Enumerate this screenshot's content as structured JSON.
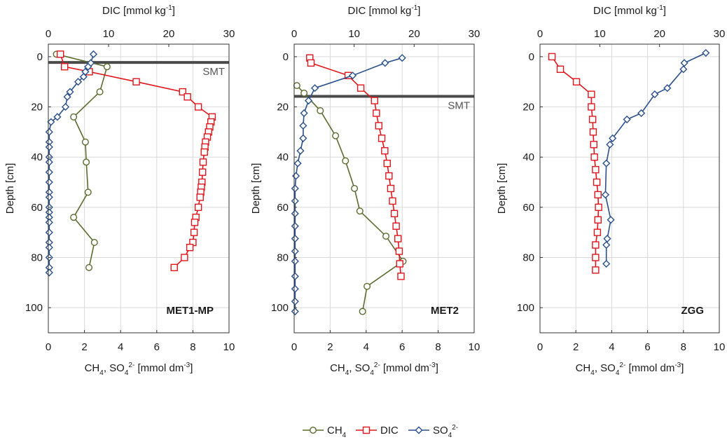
{
  "colors": {
    "ch4": "#5a6b2f",
    "dic": "#e0161c",
    "so4": "#2a4f8a",
    "smt": "#4a4a4a",
    "grid": "#d9d9d9",
    "axis": "#333333"
  },
  "legend": {
    "ch4_label": "CH",
    "ch4_sub": "4",
    "dic_label": "DIC",
    "so4_label": "SO",
    "so4_sub": "4",
    "so4_sup": "2-"
  },
  "chart_data": [
    {
      "type": "line",
      "panel_label": "MET1-MP",
      "top_axis": {
        "label": "DIC [mmol kg",
        "sup": "-1",
        "end": "]",
        "range": [
          0,
          30
        ],
        "ticks": [
          "0",
          "10",
          "20",
          "30"
        ]
      },
      "bottom_axis": {
        "label_pre": "CH",
        "sub1": "4",
        "label_mid": ", SO",
        "sub2": "4",
        "sup2": "2-",
        "label_post": " [mmol dm",
        "sup3": "-3",
        "end": "]",
        "range": [
          0,
          10
        ],
        "ticks": [
          "0",
          "2",
          "4",
          "6",
          "8",
          "10"
        ]
      },
      "y_axis": {
        "label": "Depth [cm]",
        "range": [
          -5,
          110
        ],
        "ticks": [
          "0",
          "20",
          "40",
          "60",
          "80",
          "100"
        ],
        "inverted": true
      },
      "smt": {
        "label": "SMT",
        "depth": 2.3
      },
      "series": [
        {
          "name": "CH4",
          "axis": "bottom",
          "depth": [
            -1,
            4,
            14,
            24,
            34,
            42,
            54,
            64,
            74,
            84
          ],
          "values": [
            0.45,
            3.25,
            2.85,
            1.4,
            2.05,
            2.1,
            2.2,
            1.4,
            2.55,
            2.25
          ]
        },
        {
          "name": "DIC",
          "axis": "top",
          "depth": [
            -1,
            4,
            6,
            10,
            14,
            16,
            20,
            24,
            26,
            28,
            30,
            32,
            34,
            36,
            38,
            42,
            46,
            50,
            52,
            54,
            56,
            60,
            64,
            66,
            70,
            74,
            76,
            80,
            84
          ],
          "values": [
            2,
            2.7,
            6.8,
            14.6,
            22.3,
            23.1,
            24.9,
            27.2,
            27,
            26.8,
            26.6,
            26.4,
            26.1,
            26,
            25.9,
            25.7,
            25.6,
            25.5,
            25.4,
            25.3,
            25.2,
            24.9,
            24.5,
            24.3,
            24.2,
            24,
            23.5,
            22.6,
            20.9
          ]
        },
        {
          "name": "SO4",
          "axis": "bottom",
          "depth": [
            -1,
            2.5,
            4,
            6,
            8,
            10,
            14,
            16,
            20,
            24,
            26,
            30,
            34,
            36,
            40,
            42,
            46,
            50,
            54,
            56,
            60,
            62,
            64,
            66,
            70,
            74,
            76,
            80,
            84,
            86
          ],
          "values": [
            2.5,
            2.35,
            2.2,
            2.05,
            1.95,
            1.65,
            1.2,
            1.05,
            0.95,
            0.5,
            0.15,
            0.05,
            0.05,
            0.05,
            0.05,
            0.05,
            0.05,
            0.05,
            0.05,
            0.05,
            0.05,
            0.05,
            0.05,
            0.05,
            0.05,
            0.05,
            0.05,
            0.05,
            0.05,
            0.05
          ]
        }
      ]
    },
    {
      "type": "line",
      "panel_label": "MET2",
      "top_axis": {
        "label": "DIC [mmol kg",
        "sup": "-1",
        "end": "]",
        "range": [
          0,
          30
        ],
        "ticks": [
          "0",
          "10",
          "20",
          "30"
        ]
      },
      "bottom_axis": {
        "label_pre": "CH",
        "sub1": "4",
        "label_mid": ", SO",
        "sub2": "4",
        "sup2": "2-",
        "label_post": " [mmol dm",
        "sup3": "-3",
        "end": "]",
        "range": [
          0,
          10
        ],
        "ticks": [
          "0",
          "2",
          "4",
          "6",
          "8",
          "10"
        ]
      },
      "y_axis": {
        "label": "Depth [cm]",
        "range": [
          -5,
          110
        ],
        "ticks": [
          "0",
          "20",
          "40",
          "60",
          "80",
          "100"
        ],
        "inverted": true
      },
      "smt": {
        "label": "SMT",
        "depth": 15.8
      },
      "series": [
        {
          "name": "CH4",
          "axis": "bottom",
          "depth": [
            11.5,
            14.5,
            21.5,
            31.5,
            41.5,
            52.5,
            61.5,
            71.5,
            81.5,
            91.5,
            101.5
          ],
          "values": [
            0.15,
            0.55,
            1.45,
            2.3,
            2.85,
            3.35,
            3.65,
            5.1,
            6.05,
            4.05,
            3.8
          ]
        },
        {
          "name": "DIC",
          "axis": "top",
          "depth": [
            0.5,
            2.5,
            7.5,
            12.5,
            17.5,
            22.5,
            27.5,
            32.5,
            37.5,
            42.5,
            47.5,
            52.5,
            57.5,
            62.5,
            67.5,
            72.5,
            77.5,
            82.5,
            87.5
          ],
          "values": [
            2.6,
            2.8,
            9,
            11.1,
            13.4,
            13.7,
            14.1,
            14.6,
            15.1,
            15.5,
            15.8,
            16.1,
            16.4,
            16.7,
            17,
            17.3,
            17.5,
            17.6,
            17.8
          ]
        },
        {
          "name": "SO4",
          "axis": "bottom",
          "depth": [
            0.5,
            2.5,
            7.5,
            12.5,
            17.5,
            22.5,
            27.5,
            32.5,
            37.5,
            42.5,
            47.5,
            52.5,
            57.5,
            62.5,
            67.5,
            72.5,
            77.5,
            81.5,
            87.5,
            92.5,
            97.5,
            101.5
          ],
          "values": [
            6,
            5.05,
            3.25,
            1.15,
            0.8,
            0.55,
            0.5,
            0.5,
            0.35,
            0.2,
            0.1,
            0.05,
            0.05,
            0.05,
            0.05,
            0.05,
            0.05,
            0.05,
            0.05,
            0.05,
            0.05,
            0.05
          ]
        }
      ]
    },
    {
      "type": "line",
      "panel_label": "ZGG",
      "top_axis": {
        "label": "DIC [mmol kg",
        "sup": "-1",
        "end": "]",
        "range": [
          0,
          30
        ],
        "ticks": [
          "0",
          "10",
          "20",
          "30"
        ]
      },
      "bottom_axis": {
        "label_pre": "CH",
        "sub1": "4",
        "label_mid": ", SO",
        "sub2": "4",
        "sup2": "2-",
        "label_post": " [mmol dm",
        "sup3": "-3",
        "end": "]",
        "range": [
          0,
          10
        ],
        "ticks": [
          "0",
          "2",
          "4",
          "6",
          "8",
          "10"
        ]
      },
      "y_axis": {
        "label": "Depth [cm]",
        "range": [
          -5,
          110
        ],
        "ticks": [
          "0",
          "20",
          "40",
          "60",
          "80",
          "100"
        ],
        "inverted": true
      },
      "smt": null,
      "series": [
        {
          "name": "DIC",
          "axis": "top",
          "depth": [
            0,
            5,
            10,
            15,
            20,
            25,
            30,
            35,
            40,
            45,
            50,
            55,
            60,
            65,
            70,
            75,
            80,
            85
          ],
          "values": [
            2,
            3.4,
            6.1,
            8.6,
            8.6,
            8.8,
            8.9,
            9,
            9.1,
            9.3,
            9.5,
            9.7,
            9.8,
            9.7,
            9.6,
            9.3,
            9.3,
            9.3
          ]
        },
        {
          "name": "SO4",
          "axis": "bottom",
          "depth": [
            -1.5,
            2.5,
            5,
            12.5,
            15,
            22.5,
            25,
            32.5,
            35,
            42.5,
            55,
            65,
            72.5,
            75,
            82.5
          ],
          "values": [
            9.25,
            8.05,
            8,
            7.1,
            6.4,
            5.65,
            4.85,
            4.05,
            3.9,
            3.7,
            3.65,
            3.95,
            3.75,
            3.7,
            3.7
          ]
        }
      ]
    }
  ]
}
